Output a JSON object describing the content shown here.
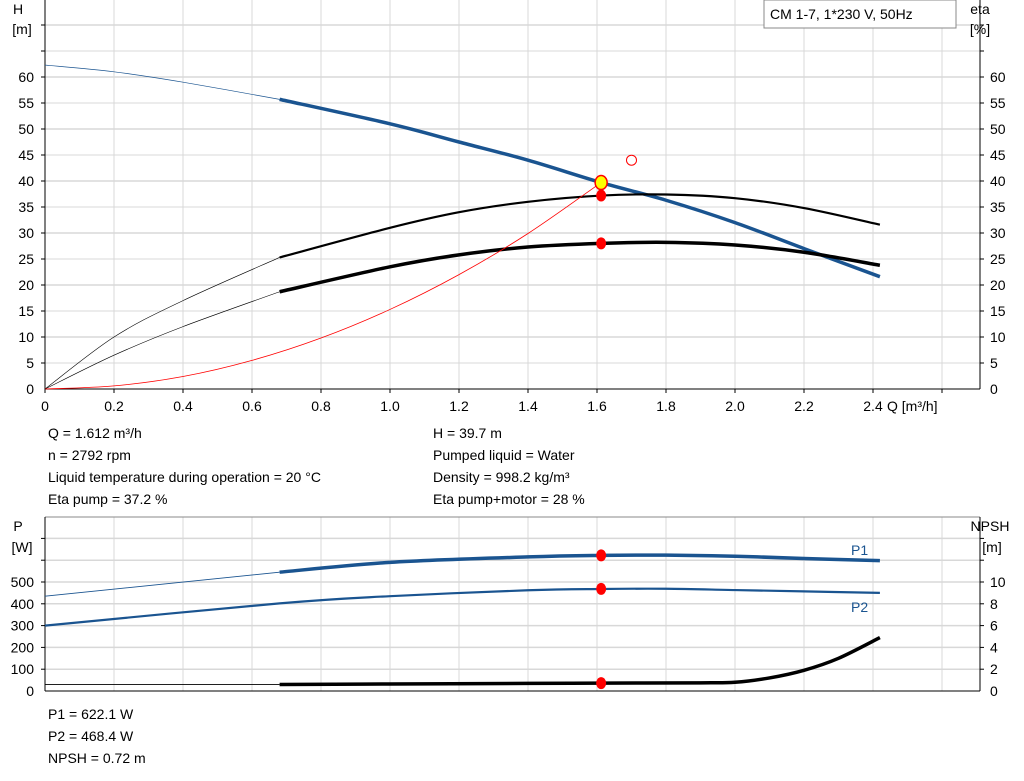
{
  "title": "CM 1-7, 1*230 V, 50Hz",
  "colors": {
    "head": "#1a5490",
    "eta": "#000000",
    "system": "#ff0000",
    "power": "#1a5490",
    "npsh": "#000000",
    "marker": "#ff0000",
    "duty": "#ffff00",
    "grid": "#d8d8d8"
  },
  "chart_data": [
    {
      "type": "line",
      "xlabel": "Q [m³/h]",
      "ylabel_left": [
        "H",
        "[m]"
      ],
      "ylabel_right": [
        "eta",
        "[%]"
      ],
      "xlim": [
        0,
        2.71
      ],
      "ylim": [
        0,
        75
      ],
      "x_ticks": [
        "0",
        "0.2",
        "0.4",
        "0.6",
        "0.8",
        "1.0",
        "1.2",
        "1.4",
        "1.6",
        "1.8",
        "2.0",
        "2.2",
        "2.4"
      ],
      "y_ticks": [
        "0",
        "5",
        "10",
        "15",
        "20",
        "25",
        "30",
        "35",
        "40",
        "45",
        "50",
        "55",
        "60"
      ],
      "grid": true,
      "series": [
        {
          "id": "head",
          "color": "#1a5490",
          "thick_from": 0.68,
          "x": [
            0,
            0.2,
            0.4,
            0.68,
            1.0,
            1.2,
            1.4,
            1.612,
            1.8,
            2.0,
            2.2,
            2.42
          ],
          "y": [
            62.3,
            61,
            59,
            55.7,
            51,
            47.5,
            44,
            39.7,
            36.3,
            32,
            27,
            21.6
          ]
        },
        {
          "id": "eta-pump",
          "color": "#000000",
          "thick_from": 0.68,
          "x": [
            0,
            0.2,
            0.4,
            0.68,
            1.0,
            1.2,
            1.4,
            1.612,
            1.8,
            2.0,
            2.2,
            2.42
          ],
          "y": [
            0,
            10,
            17,
            25.3,
            31,
            34,
            36,
            37.2,
            37.4,
            36.7,
            34.8,
            31.6
          ]
        },
        {
          "id": "eta-total",
          "color": "#000000",
          "thick_from": 0.68,
          "x": [
            0,
            0.2,
            0.4,
            0.68,
            1.0,
            1.2,
            1.4,
            1.612,
            1.8,
            2.0,
            2.2,
            2.42
          ],
          "y": [
            0,
            6.5,
            12,
            18.7,
            23.5,
            25.8,
            27.3,
            28,
            28.2,
            27.7,
            26.3,
            23.8
          ]
        },
        {
          "id": "system",
          "color": "#ff0000",
          "x": [
            0,
            0.2,
            0.4,
            0.6,
            0.8,
            1.0,
            1.2,
            1.4,
            1.612
          ],
          "y": [
            0,
            0.6,
            2.4,
            5.5,
            9.8,
            15.3,
            22,
            29.9,
            39.7
          ]
        }
      ],
      "duty_point": {
        "x": 1.612,
        "y": 39.7
      },
      "markers": [
        {
          "x": 1.612,
          "y": 37.2
        },
        {
          "x": 1.612,
          "y": 28
        }
      ],
      "open_marker": {
        "x": 1.7,
        "y": 44
      }
    },
    {
      "type": "line",
      "ylabel_left": [
        "P",
        "[W]"
      ],
      "ylabel_right": [
        "NPSH",
        "[m]"
      ],
      "xlim": [
        0,
        2.71
      ],
      "ylim": [
        0,
        800
      ],
      "y_ticks_left": [
        "0",
        "100",
        "200",
        "300",
        "400",
        "500"
      ],
      "y_ticks_right": [
        "0",
        "2",
        "4",
        "6",
        "8",
        "10"
      ],
      "grid": true,
      "series": [
        {
          "id": "P1",
          "name": "P1",
          "color": "#1a5490",
          "thick_from": 0.68,
          "x": [
            0,
            0.68,
            1.0,
            1.4,
            1.612,
            1.8,
            2.0,
            2.2,
            2.42
          ],
          "y": [
            435,
            545,
            590,
            615,
            622,
            623,
            618,
            608,
            598
          ]
        },
        {
          "id": "P2",
          "name": "P2",
          "color": "#1a5490",
          "x": [
            0,
            0.68,
            1.0,
            1.4,
            1.612,
            1.8,
            2.0,
            2.2,
            2.42
          ],
          "y": [
            300,
            402,
            435,
            462,
            468,
            469,
            463,
            457,
            450
          ]
        },
        {
          "id": "NPSH",
          "color": "#000000",
          "axis": "right",
          "thick_from": 0.68,
          "x": [
            0,
            0.68,
            1.0,
            1.4,
            1.612,
            1.9,
            2.0,
            2.1,
            2.2,
            2.3,
            2.42
          ],
          "y": [
            0.6,
            0.6,
            0.64,
            0.7,
            0.72,
            0.75,
            0.8,
            1.2,
            1.9,
            3.0,
            4.9
          ]
        }
      ],
      "markers": [
        {
          "x": 1.612,
          "y": 622.1
        },
        {
          "x": 1.612,
          "y": 468.4
        },
        {
          "x": 1.612,
          "npsh": 0.72
        }
      ]
    }
  ],
  "info_top": {
    "q": "Q = 1.612 m³/h",
    "n": "n = 2792 rpm",
    "temp": "Liquid temperature during operation = 20 °C",
    "eta_pump": "Eta pump = 37.2 %",
    "h": "H = 39.7 m",
    "liquid": "Pumped liquid = Water",
    "density": "Density = 998.2 kg/m³",
    "eta_total": "Eta pump+motor = 28 %"
  },
  "info_bottom": {
    "p1": "P1 = 622.1 W",
    "p2": "P2 = 468.4 W",
    "npsh": "NPSH = 0.72 m"
  }
}
